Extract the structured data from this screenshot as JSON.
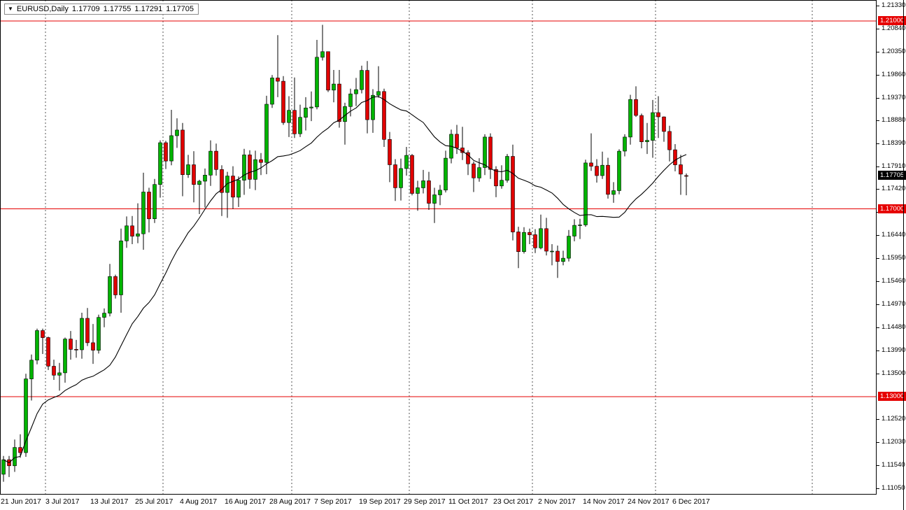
{
  "titlebar": {
    "symbol_timeframe": "EURUSD,Daily",
    "open": "1.17709",
    "high": "1.17755",
    "low": "1.17291",
    "close": "1.17705"
  },
  "chart_data": {
    "type": "candlestick",
    "symbol": "EURUSD",
    "timeframe": "Daily",
    "current_price_label": "1.17705",
    "ma": {
      "type": "sma",
      "period": 20,
      "color": "#000000"
    },
    "hlines": [
      {
        "price": 1.21,
        "label": "1.21000"
      },
      {
        "price": 1.17,
        "label": "1.17000"
      },
      {
        "price": 1.13,
        "label": "1.13000"
      }
    ],
    "y_axis": {
      "top": 1.2133,
      "bottom": 1.1105,
      "ticks": [
        "1.21330",
        "1.20840",
        "1.20350",
        "1.19860",
        "1.19370",
        "1.18880",
        "1.18390",
        "1.17910",
        "1.17420",
        "1.16930",
        "1.16440",
        "1.15950",
        "1.15460",
        "1.14970",
        "1.14480",
        "1.13990",
        "1.13500",
        "1.12520",
        "1.12030",
        "1.11540",
        "1.11050"
      ]
    },
    "x_axis": {
      "labels": [
        {
          "index": 0,
          "text": "21 Jun 2017"
        },
        {
          "index": 8,
          "text": "3 Jul 2017"
        },
        {
          "index": 16,
          "text": "13 Jul 2017"
        },
        {
          "index": 24,
          "text": "25 Jul 2017"
        },
        {
          "index": 32,
          "text": "4 Aug 2017"
        },
        {
          "index": 40,
          "text": "16 Aug 2017"
        },
        {
          "index": 48,
          "text": "28 Aug 2017"
        },
        {
          "index": 56,
          "text": "7 Sep 2017"
        },
        {
          "index": 64,
          "text": "19 Sep 2017"
        },
        {
          "index": 72,
          "text": "29 Sep 2017"
        },
        {
          "index": 80,
          "text": "11 Oct 2017"
        },
        {
          "index": 88,
          "text": "23 Oct 2017"
        },
        {
          "index": 96,
          "text": "2 Nov 2017"
        },
        {
          "index": 104,
          "text": "14 Nov 2017"
        },
        {
          "index": 112,
          "text": "24 Nov 2017"
        },
        {
          "index": 120,
          "text": "6 Dec 2017"
        }
      ]
    },
    "colors": {
      "up": "#00b300",
      "down": "#e00000",
      "wick": "#000000",
      "hline": "#e60000",
      "separator": "#555555"
    },
    "dates": [
      "21 Jun",
      "22 Jun",
      "23 Jun",
      "26 Jun",
      "27 Jun",
      "28 Jun",
      "29 Jun",
      "30 Jun",
      "3 Jul",
      "4 Jul",
      "5 Jul",
      "6 Jul",
      "7 Jul",
      "10 Jul",
      "11 Jul",
      "12 Jul",
      "13 Jul",
      "14 Jul",
      "17 Jul",
      "18 Jul",
      "19 Jul",
      "20 Jul",
      "21 Jul",
      "24 Jul",
      "25 Jul",
      "26 Jul",
      "27 Jul",
      "28 Jul",
      "31 Jul",
      "1 Aug",
      "2 Aug",
      "3 Aug",
      "4 Aug",
      "7 Aug",
      "8 Aug",
      "9 Aug",
      "10 Aug",
      "11 Aug",
      "14 Aug",
      "15 Aug",
      "16 Aug",
      "17 Aug",
      "18 Aug",
      "21 Aug",
      "22 Aug",
      "23 Aug",
      "24 Aug",
      "25 Aug",
      "28 Aug",
      "29 Aug",
      "30 Aug",
      "31 Aug",
      "1 Sep",
      "4 Sep",
      "5 Sep",
      "6 Sep",
      "7 Sep",
      "8 Sep",
      "11 Sep",
      "12 Sep",
      "13 Sep",
      "14 Sep",
      "15 Sep",
      "18 Sep",
      "19 Sep",
      "20 Sep",
      "21 Sep",
      "22 Sep",
      "25 Sep",
      "26 Sep",
      "27 Sep",
      "28 Sep",
      "29 Sep",
      "2 Oct",
      "3 Oct",
      "4 Oct",
      "5 Oct",
      "6 Oct",
      "9 Oct",
      "10 Oct",
      "11 Oct",
      "12 Oct",
      "13 Oct",
      "16 Oct",
      "17 Oct",
      "18 Oct",
      "19 Oct",
      "20 Oct",
      "23 Oct",
      "24 Oct",
      "25 Oct",
      "26 Oct",
      "27 Oct",
      "30 Oct",
      "31 Oct",
      "1 Nov",
      "2 Nov",
      "3 Nov",
      "6 Nov",
      "7 Nov",
      "8 Nov",
      "9 Nov",
      "10 Nov",
      "13 Nov",
      "14 Nov",
      "15 Nov",
      "16 Nov",
      "17 Nov",
      "20 Nov",
      "21 Nov",
      "22 Nov",
      "23 Nov",
      "24 Nov",
      "27 Nov",
      "28 Nov",
      "29 Nov",
      "30 Nov",
      "1 Dec",
      "4 Dec",
      "5 Dec",
      "6 Dec",
      "7 Dec",
      "8 Dec"
    ],
    "ohlc": [
      [
        1.1135,
        1.1174,
        1.1119,
        1.1166
      ],
      [
        1.1166,
        1.1174,
        1.1129,
        1.1153
      ],
      [
        1.1153,
        1.1209,
        1.114,
        1.1192
      ],
      [
        1.1192,
        1.122,
        1.117,
        1.1181
      ],
      [
        1.1181,
        1.1349,
        1.1172,
        1.1338
      ],
      [
        1.1338,
        1.139,
        1.1292,
        1.1378
      ],
      [
        1.1378,
        1.1445,
        1.1369,
        1.1441
      ],
      [
        1.1441,
        1.1445,
        1.1391,
        1.1426
      ],
      [
        1.1426,
        1.1428,
        1.1357,
        1.1365
      ],
      [
        1.1365,
        1.1379,
        1.1336,
        1.1346
      ],
      [
        1.1346,
        1.1372,
        1.1313,
        1.1351
      ],
      [
        1.1351,
        1.1426,
        1.133,
        1.1423
      ],
      [
        1.1423,
        1.144,
        1.1379,
        1.1401
      ],
      [
        1.1401,
        1.1421,
        1.1383,
        1.14
      ],
      [
        1.14,
        1.1479,
        1.1381,
        1.1467
      ],
      [
        1.1467,
        1.1489,
        1.1408,
        1.1415
      ],
      [
        1.1415,
        1.1455,
        1.137,
        1.1399
      ],
      [
        1.1399,
        1.1475,
        1.1392,
        1.1469
      ],
      [
        1.1469,
        1.1488,
        1.1448,
        1.1478
      ],
      [
        1.1478,
        1.1583,
        1.1471,
        1.1556
      ],
      [
        1.1556,
        1.156,
        1.1509,
        1.1517
      ],
      [
        1.1517,
        1.1658,
        1.1479,
        1.1632
      ],
      [
        1.1632,
        1.1684,
        1.1617,
        1.1664
      ],
      [
        1.1664,
        1.1685,
        1.1625,
        1.1642
      ],
      [
        1.1642,
        1.1712,
        1.1627,
        1.1647
      ],
      [
        1.1647,
        1.1777,
        1.1613,
        1.1736
      ],
      [
        1.1736,
        1.1745,
        1.165,
        1.1679
      ],
      [
        1.1679,
        1.1764,
        1.167,
        1.1752
      ],
      [
        1.1752,
        1.1846,
        1.1724,
        1.1841
      ],
      [
        1.1841,
        1.1845,
        1.1785,
        1.1802
      ],
      [
        1.1802,
        1.1911,
        1.1793,
        1.1856
      ],
      [
        1.1856,
        1.1893,
        1.183,
        1.1868
      ],
      [
        1.1868,
        1.1883,
        1.1727,
        1.1773
      ],
      [
        1.1773,
        1.1815,
        1.1766,
        1.1794
      ],
      [
        1.1794,
        1.1823,
        1.1714,
        1.1752
      ],
      [
        1.1752,
        1.1762,
        1.1689,
        1.1759
      ],
      [
        1.1759,
        1.1786,
        1.1703,
        1.1772
      ],
      [
        1.1772,
        1.1846,
        1.1749,
        1.1823
      ],
      [
        1.1823,
        1.1839,
        1.1771,
        1.1784
      ],
      [
        1.1784,
        1.1793,
        1.1685,
        1.1735
      ],
      [
        1.1735,
        1.1779,
        1.1681,
        1.177
      ],
      [
        1.177,
        1.1791,
        1.17,
        1.1725
      ],
      [
        1.1725,
        1.1769,
        1.1704,
        1.1761
      ],
      [
        1.1761,
        1.1828,
        1.173,
        1.1815
      ],
      [
        1.1815,
        1.1825,
        1.1743,
        1.1763
      ],
      [
        1.1763,
        1.1824,
        1.174,
        1.1805
      ],
      [
        1.1805,
        1.1819,
        1.1772,
        1.1799
      ],
      [
        1.1799,
        1.1941,
        1.1774,
        1.1923
      ],
      [
        1.1923,
        1.1985,
        1.1915,
        1.1979
      ],
      [
        1.1979,
        1.207,
        1.1938,
        1.1972
      ],
      [
        1.1972,
        1.1983,
        1.1879,
        1.1884
      ],
      [
        1.1884,
        1.194,
        1.1853,
        1.191
      ],
      [
        1.191,
        1.198,
        1.1851,
        1.186
      ],
      [
        1.186,
        1.1922,
        1.1853,
        1.1895
      ],
      [
        1.1895,
        1.1938,
        1.1867,
        1.1915
      ],
      [
        1.1915,
        1.195,
        1.1887,
        1.1917
      ],
      [
        1.1917,
        1.206,
        1.1912,
        1.2023
      ],
      [
        1.2023,
        1.2092,
        1.2016,
        1.2035
      ],
      [
        1.2035,
        1.2035,
        1.1949,
        1.1953
      ],
      [
        1.1953,
        1.1996,
        1.1927,
        1.1966
      ],
      [
        1.1966,
        1.1996,
        1.1873,
        1.1886
      ],
      [
        1.1886,
        1.1926,
        1.1837,
        1.1918
      ],
      [
        1.1918,
        1.1956,
        1.1897,
        1.1945
      ],
      [
        1.1945,
        1.1979,
        1.1919,
        1.1954
      ],
      [
        1.1954,
        1.2005,
        1.1946,
        1.1995
      ],
      [
        1.1995,
        1.2015,
        1.1861,
        1.189
      ],
      [
        1.189,
        1.1955,
        1.1862,
        1.1942
      ],
      [
        1.1942,
        1.2004,
        1.1937,
        1.195
      ],
      [
        1.195,
        1.1956,
        1.1832,
        1.1848
      ],
      [
        1.1848,
        1.1864,
        1.1757,
        1.1794
      ],
      [
        1.1794,
        1.1806,
        1.1717,
        1.1745
      ],
      [
        1.1745,
        1.1807,
        1.1718,
        1.1786
      ],
      [
        1.1786,
        1.1832,
        1.1771,
        1.1814
      ],
      [
        1.1814,
        1.1817,
        1.1729,
        1.1733
      ],
      [
        1.1733,
        1.176,
        1.1696,
        1.1745
      ],
      [
        1.1745,
        1.1783,
        1.1733,
        1.176
      ],
      [
        1.176,
        1.1779,
        1.1698,
        1.1712
      ],
      [
        1.1712,
        1.1745,
        1.167,
        1.173
      ],
      [
        1.173,
        1.1751,
        1.1708,
        1.174
      ],
      [
        1.174,
        1.1824,
        1.1735,
        1.1808
      ],
      [
        1.1808,
        1.1869,
        1.1797,
        1.1859
      ],
      [
        1.1859,
        1.1879,
        1.1817,
        1.183
      ],
      [
        1.183,
        1.1875,
        1.1804,
        1.182
      ],
      [
        1.182,
        1.1825,
        1.1772,
        1.1796
      ],
      [
        1.1796,
        1.1801,
        1.1736,
        1.1766
      ],
      [
        1.1766,
        1.1808,
        1.1758,
        1.1788
      ],
      [
        1.1788,
        1.1859,
        1.1772,
        1.1853
      ],
      [
        1.1853,
        1.1861,
        1.1764,
        1.1784
      ],
      [
        1.1784,
        1.1791,
        1.1725,
        1.1749
      ],
      [
        1.1749,
        1.1793,
        1.1743,
        1.1761
      ],
      [
        1.1761,
        1.1817,
        1.1756,
        1.1812
      ],
      [
        1.1812,
        1.1837,
        1.1633,
        1.1651
      ],
      [
        1.1651,
        1.1662,
        1.1574,
        1.1609
      ],
      [
        1.1609,
        1.1661,
        1.1605,
        1.165
      ],
      [
        1.165,
        1.1658,
        1.1625,
        1.1645
      ],
      [
        1.1645,
        1.1657,
        1.1606,
        1.1617
      ],
      [
        1.1617,
        1.1688,
        1.1614,
        1.1658
      ],
      [
        1.1658,
        1.1681,
        1.1601,
        1.161
      ],
      [
        1.161,
        1.1625,
        1.158,
        1.161
      ],
      [
        1.161,
        1.1622,
        1.1553,
        1.1588
      ],
      [
        1.1588,
        1.1611,
        1.158,
        1.1595
      ],
      [
        1.1595,
        1.1655,
        1.1588,
        1.1642
      ],
      [
        1.1642,
        1.1678,
        1.1631,
        1.1665
      ],
      [
        1.1665,
        1.1679,
        1.1636,
        1.1666
      ],
      [
        1.1666,
        1.1805,
        1.1662,
        1.1798
      ],
      [
        1.1798,
        1.1861,
        1.1781,
        1.1791
      ],
      [
        1.1791,
        1.1806,
        1.1756,
        1.1771
      ],
      [
        1.1771,
        1.1822,
        1.1764,
        1.1793
      ],
      [
        1.1793,
        1.1809,
        1.1722,
        1.1731
      ],
      [
        1.1731,
        1.1757,
        1.1713,
        1.1739
      ],
      [
        1.1739,
        1.1827,
        1.1731,
        1.1823
      ],
      [
        1.1823,
        1.1859,
        1.1812,
        1.1853
      ],
      [
        1.1853,
        1.1943,
        1.1837,
        1.1933
      ],
      [
        1.1933,
        1.1961,
        1.1896,
        1.1899
      ],
      [
        1.1899,
        1.1903,
        1.1829,
        1.1843
      ],
      [
        1.1843,
        1.1883,
        1.1817,
        1.1846
      ],
      [
        1.1846,
        1.1932,
        1.1809,
        1.1905
      ],
      [
        1.1905,
        1.194,
        1.1851,
        1.1896
      ],
      [
        1.1896,
        1.1897,
        1.1843,
        1.1865
      ],
      [
        1.1865,
        1.1877,
        1.1801,
        1.1826
      ],
      [
        1.1826,
        1.1838,
        1.178,
        1.1794
      ],
      [
        1.1794,
        1.1815,
        1.173,
        1.1774
      ],
      [
        1.17709,
        1.17755,
        1.17291,
        1.17705
      ]
    ]
  }
}
